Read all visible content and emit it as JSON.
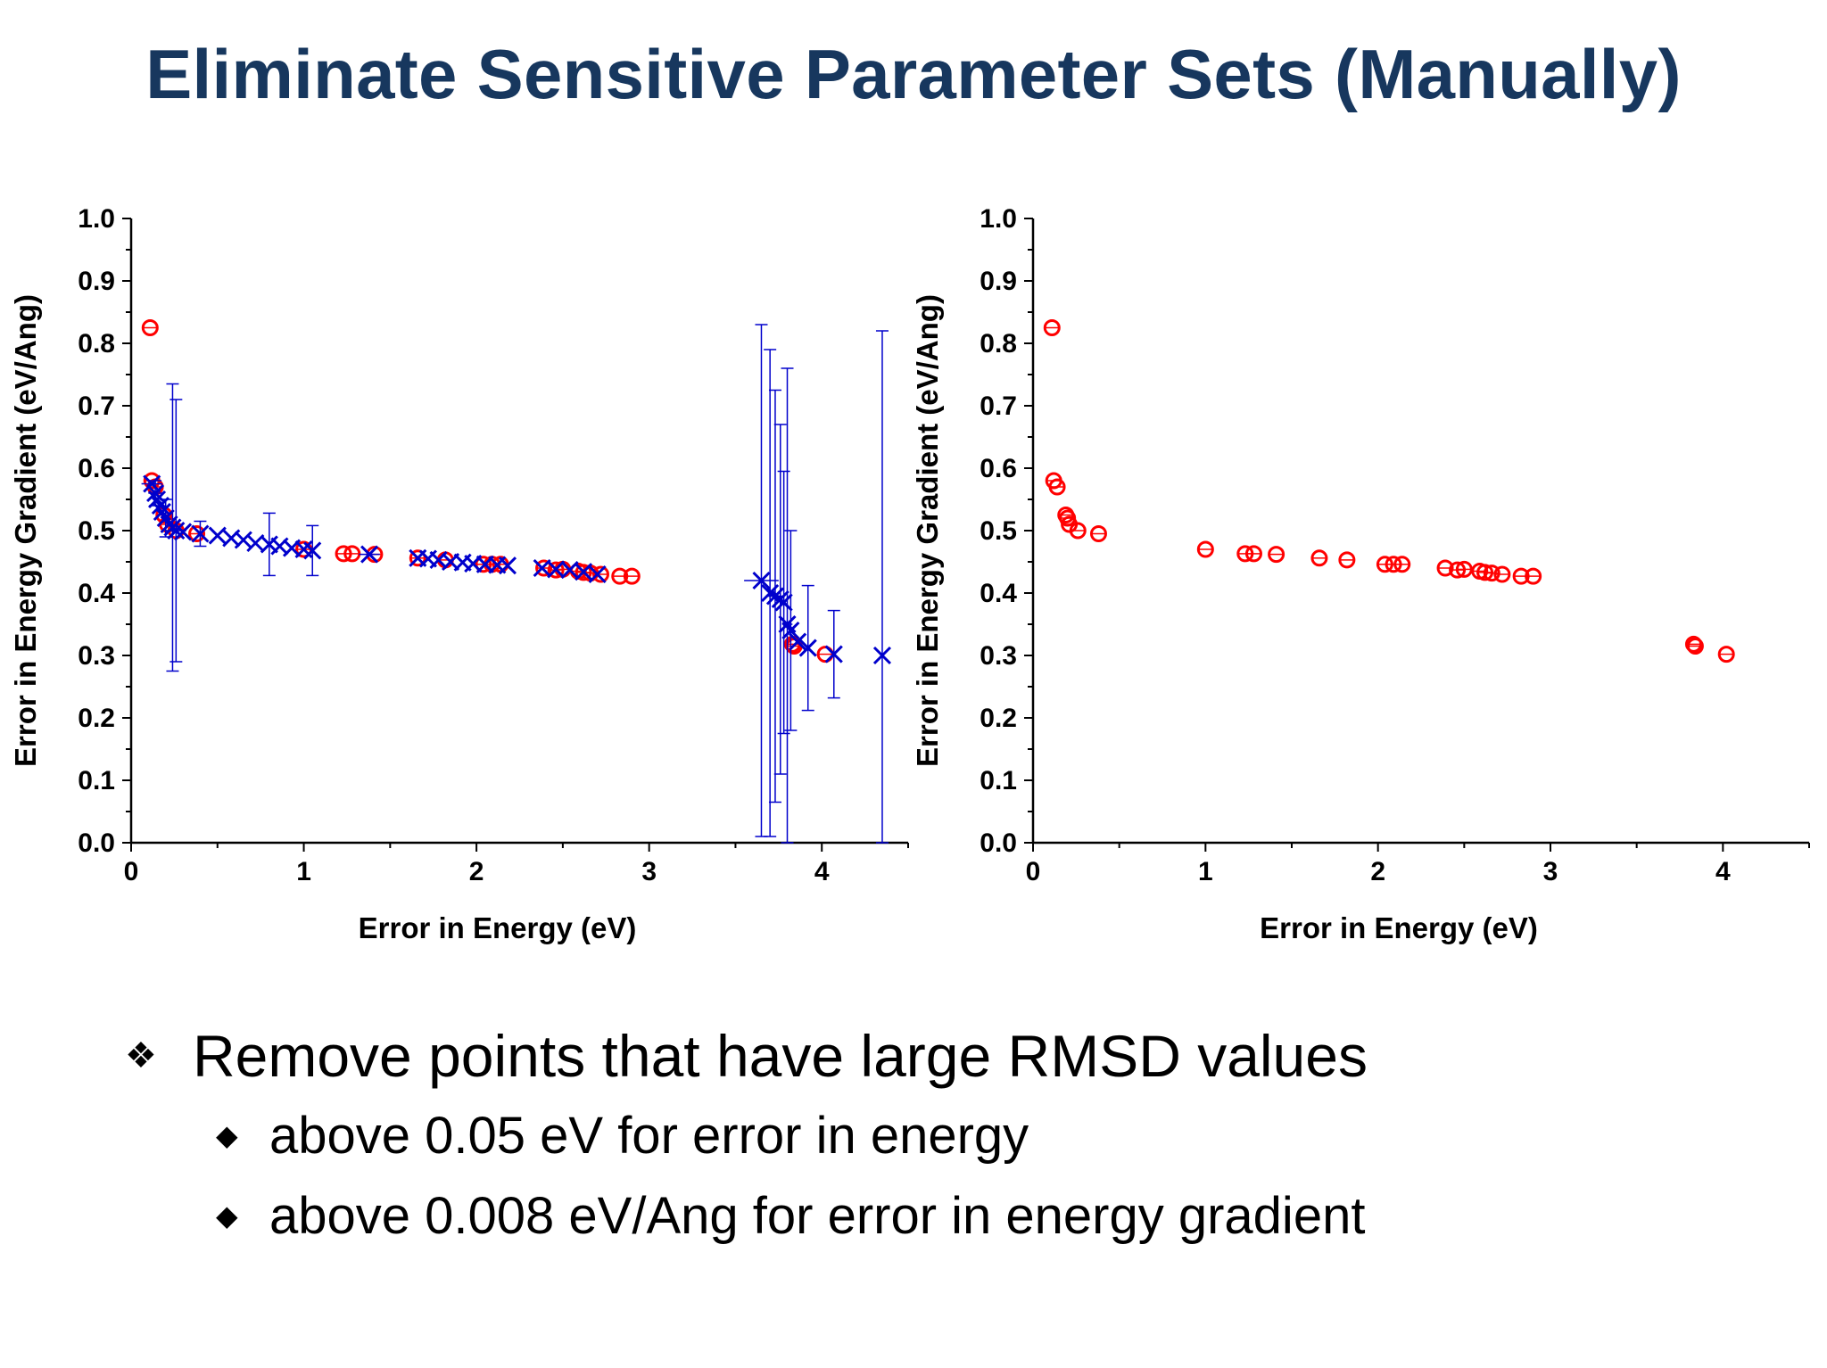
{
  "title": "Eliminate Sensitive Parameter Sets (Manually)",
  "chart_data": [
    {
      "type": "scatter",
      "xlabel": "Error in Energy (eV)",
      "ylabel": "Error in Energy Gradient (eV/Ang)",
      "xlim": [
        0,
        4.5
      ],
      "ylim": [
        0.0,
        1.0
      ],
      "xticks": [
        "0",
        "1",
        "2",
        "3",
        "4"
      ],
      "yticks": [
        "0.0",
        "0.1",
        "0.2",
        "0.3",
        "0.4",
        "0.5",
        "0.6",
        "0.7",
        "0.8",
        "0.9",
        "1.0"
      ],
      "series": [
        {
          "marker": "open-circle",
          "color": "#ff0000",
          "points": [
            [
              0.11,
              0.825
            ],
            [
              0.12,
              0.58
            ],
            [
              0.14,
              0.57
            ],
            [
              0.19,
              0.525
            ],
            [
              0.21,
              0.51
            ],
            [
              0.26,
              0.5
            ],
            [
              0.38,
              0.495
            ],
            [
              1.0,
              0.47
            ],
            [
              1.23,
              0.463
            ],
            [
              1.28,
              0.463
            ],
            [
              1.41,
              0.462
            ],
            [
              1.66,
              0.456
            ],
            [
              1.82,
              0.453
            ],
            [
              2.04,
              0.446
            ],
            [
              2.09,
              0.446
            ],
            [
              2.14,
              0.446
            ],
            [
              2.39,
              0.44
            ],
            [
              2.46,
              0.437
            ],
            [
              2.5,
              0.438
            ],
            [
              2.59,
              0.435
            ],
            [
              2.62,
              0.433
            ],
            [
              2.66,
              0.432
            ],
            [
              2.72,
              0.43
            ],
            [
              2.83,
              0.427
            ],
            [
              2.9,
              0.427
            ],
            [
              3.83,
              0.318
            ],
            [
              3.84,
              0.315
            ],
            [
              4.02,
              0.302
            ]
          ]
        },
        {
          "marker": "cross",
          "color": "#0000cc",
          "points": [
            [
              0.12,
              0.575
            ],
            [
              0.14,
              0.56
            ],
            [
              0.15,
              0.55
            ],
            [
              0.17,
              0.54
            ],
            [
              0.18,
              0.53
            ],
            [
              0.2,
              0.52
            ],
            [
              0.22,
              0.51
            ],
            [
              0.24,
              0.505
            ],
            [
              0.26,
              0.5
            ],
            [
              0.3,
              0.498
            ],
            [
              0.4,
              0.495
            ],
            [
              0.5,
              0.492
            ],
            [
              0.58,
              0.488
            ],
            [
              0.65,
              0.485
            ],
            [
              0.72,
              0.48
            ],
            [
              0.8,
              0.478
            ],
            [
              0.86,
              0.475
            ],
            [
              0.93,
              0.472
            ],
            [
              1.0,
              0.47
            ],
            [
              1.05,
              0.468
            ],
            [
              1.38,
              0.462
            ],
            [
              1.66,
              0.456
            ],
            [
              1.72,
              0.455
            ],
            [
              1.78,
              0.453
            ],
            [
              1.85,
              0.45
            ],
            [
              1.92,
              0.449
            ],
            [
              1.98,
              0.447
            ],
            [
              2.05,
              0.446
            ],
            [
              2.12,
              0.445
            ],
            [
              2.18,
              0.444
            ],
            [
              2.38,
              0.44
            ],
            [
              2.46,
              0.438
            ],
            [
              2.54,
              0.437
            ],
            [
              2.62,
              0.434
            ],
            [
              2.7,
              0.43
            ],
            [
              3.65,
              0.42
            ],
            [
              3.7,
              0.4
            ],
            [
              3.73,
              0.395
            ],
            [
              3.76,
              0.39
            ],
            [
              3.78,
              0.385
            ],
            [
              3.8,
              0.35
            ],
            [
              3.82,
              0.34
            ],
            [
              3.86,
              0.322
            ],
            [
              3.92,
              0.312
            ],
            [
              4.07,
              0.302
            ],
            [
              4.35,
              0.3
            ]
          ]
        }
      ]
    },
    {
      "type": "scatter",
      "xlabel": "Error in Energy (eV)",
      "ylabel": "Error in Energy Gradient (eV/Ang)",
      "xlim": [
        0,
        4.5
      ],
      "ylim": [
        0.0,
        1.0
      ],
      "xticks": [
        "0",
        "1",
        "2",
        "3",
        "4"
      ],
      "yticks": [
        "0.0",
        "0.1",
        "0.2",
        "0.3",
        "0.4",
        "0.5",
        "0.6",
        "0.7",
        "0.8",
        "0.9",
        "1.0"
      ],
      "series": [
        {
          "marker": "open-circle",
          "color": "#ff0000",
          "points": [
            [
              0.11,
              0.825
            ],
            [
              0.12,
              0.58
            ],
            [
              0.14,
              0.57
            ],
            [
              0.19,
              0.525
            ],
            [
              0.2,
              0.52
            ],
            [
              0.21,
              0.51
            ],
            [
              0.26,
              0.5
            ],
            [
              0.38,
              0.495
            ],
            [
              1.0,
              0.47
            ],
            [
              1.23,
              0.463
            ],
            [
              1.28,
              0.463
            ],
            [
              1.41,
              0.462
            ],
            [
              1.66,
              0.456
            ],
            [
              1.82,
              0.453
            ],
            [
              2.04,
              0.446
            ],
            [
              2.09,
              0.446
            ],
            [
              2.14,
              0.446
            ],
            [
              2.39,
              0.44
            ],
            [
              2.46,
              0.437
            ],
            [
              2.5,
              0.438
            ],
            [
              2.59,
              0.435
            ],
            [
              2.62,
              0.433
            ],
            [
              2.66,
              0.432
            ],
            [
              2.72,
              0.43
            ],
            [
              2.83,
              0.427
            ],
            [
              2.9,
              0.427
            ],
            [
              3.83,
              0.318
            ],
            [
              3.84,
              0.315
            ],
            [
              4.02,
              0.302
            ]
          ]
        }
      ]
    }
  ],
  "bullets": {
    "main": "Remove points that have large RMSD values",
    "sub": [
      "above 0.05 eV for error in energy",
      "above 0.008 eV/Ang for error in energy gradient"
    ]
  },
  "icons": {
    "main_bullet": "four-diamond-bullet",
    "sub_bullet": "diamond-bullet"
  }
}
